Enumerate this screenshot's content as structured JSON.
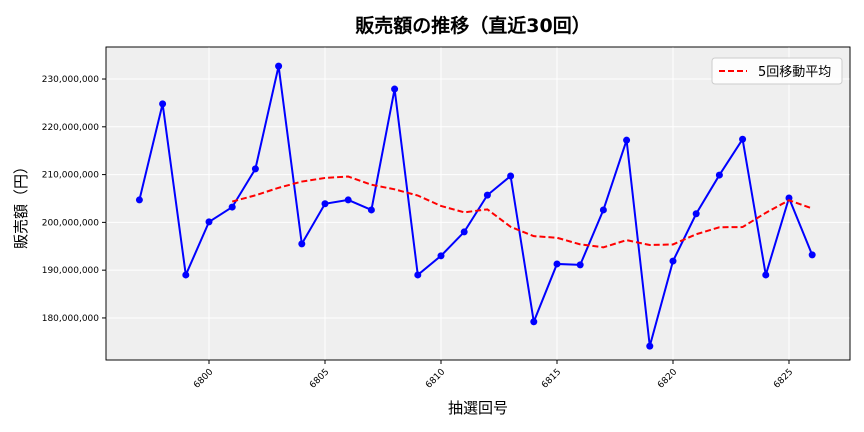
{
  "chart_data": {
    "type": "line",
    "title": "販売額の推移（直近30回）",
    "xlabel": "抽選回号",
    "ylabel": "販売額（円）",
    "x": [
      6797,
      6798,
      6799,
      6800,
      6801,
      6802,
      6803,
      6804,
      6805,
      6806,
      6807,
      6808,
      6809,
      6810,
      6811,
      6812,
      6813,
      6814,
      6815,
      6816,
      6817,
      6818,
      6819,
      6820,
      6821,
      6822,
      6823,
      6824,
      6825,
      6826
    ],
    "series": [
      {
        "values": [
          204700000,
          224800000,
          189000000,
          200100000,
          203200000,
          211200000,
          232700000,
          195500000,
          203900000,
          204700000,
          202600000,
          227900000,
          189000000,
          193000000,
          198000000,
          205700000,
          209700000,
          179200000,
          191300000,
          191100000,
          202600000,
          217200000,
          174100000,
          191900000,
          201800000,
          209900000,
          217400000,
          189000000,
          205100000,
          193200000
        ],
        "color": "#0000ff",
        "style": "solid",
        "marker": "circle"
      },
      {
        "name": "5回移動平均",
        "values": [
          null,
          null,
          null,
          null,
          204360000,
          205660000,
          207240000,
          208540000,
          209300000,
          209600000,
          207880000,
          206920000,
          205620000,
          203440000,
          202100000,
          202720000,
          199080000,
          197120000,
          196780000,
          195400000,
          194780000,
          196280000,
          195260000,
          195380000,
          197520000,
          198980000,
          199020000,
          202000000,
          204640000,
          202920000
        ],
        "color": "#ff0000",
        "style": "dashed"
      }
    ],
    "xticks": [
      6800,
      6805,
      6810,
      6815,
      6820,
      6825
    ],
    "yticks": [
      180000000,
      190000000,
      200000000,
      210000000,
      220000000,
      230000000
    ],
    "ytick_labels": [
      "180,000,000",
      "190,000,000",
      "200,000,000",
      "210,000,000",
      "220,000,000",
      "230,000,000"
    ],
    "xlim": [
      6795.56,
      6827.63
    ],
    "ylim": [
      171200000,
      236700000
    ],
    "grid": true,
    "legend": "top-right",
    "background": "#efefef"
  }
}
